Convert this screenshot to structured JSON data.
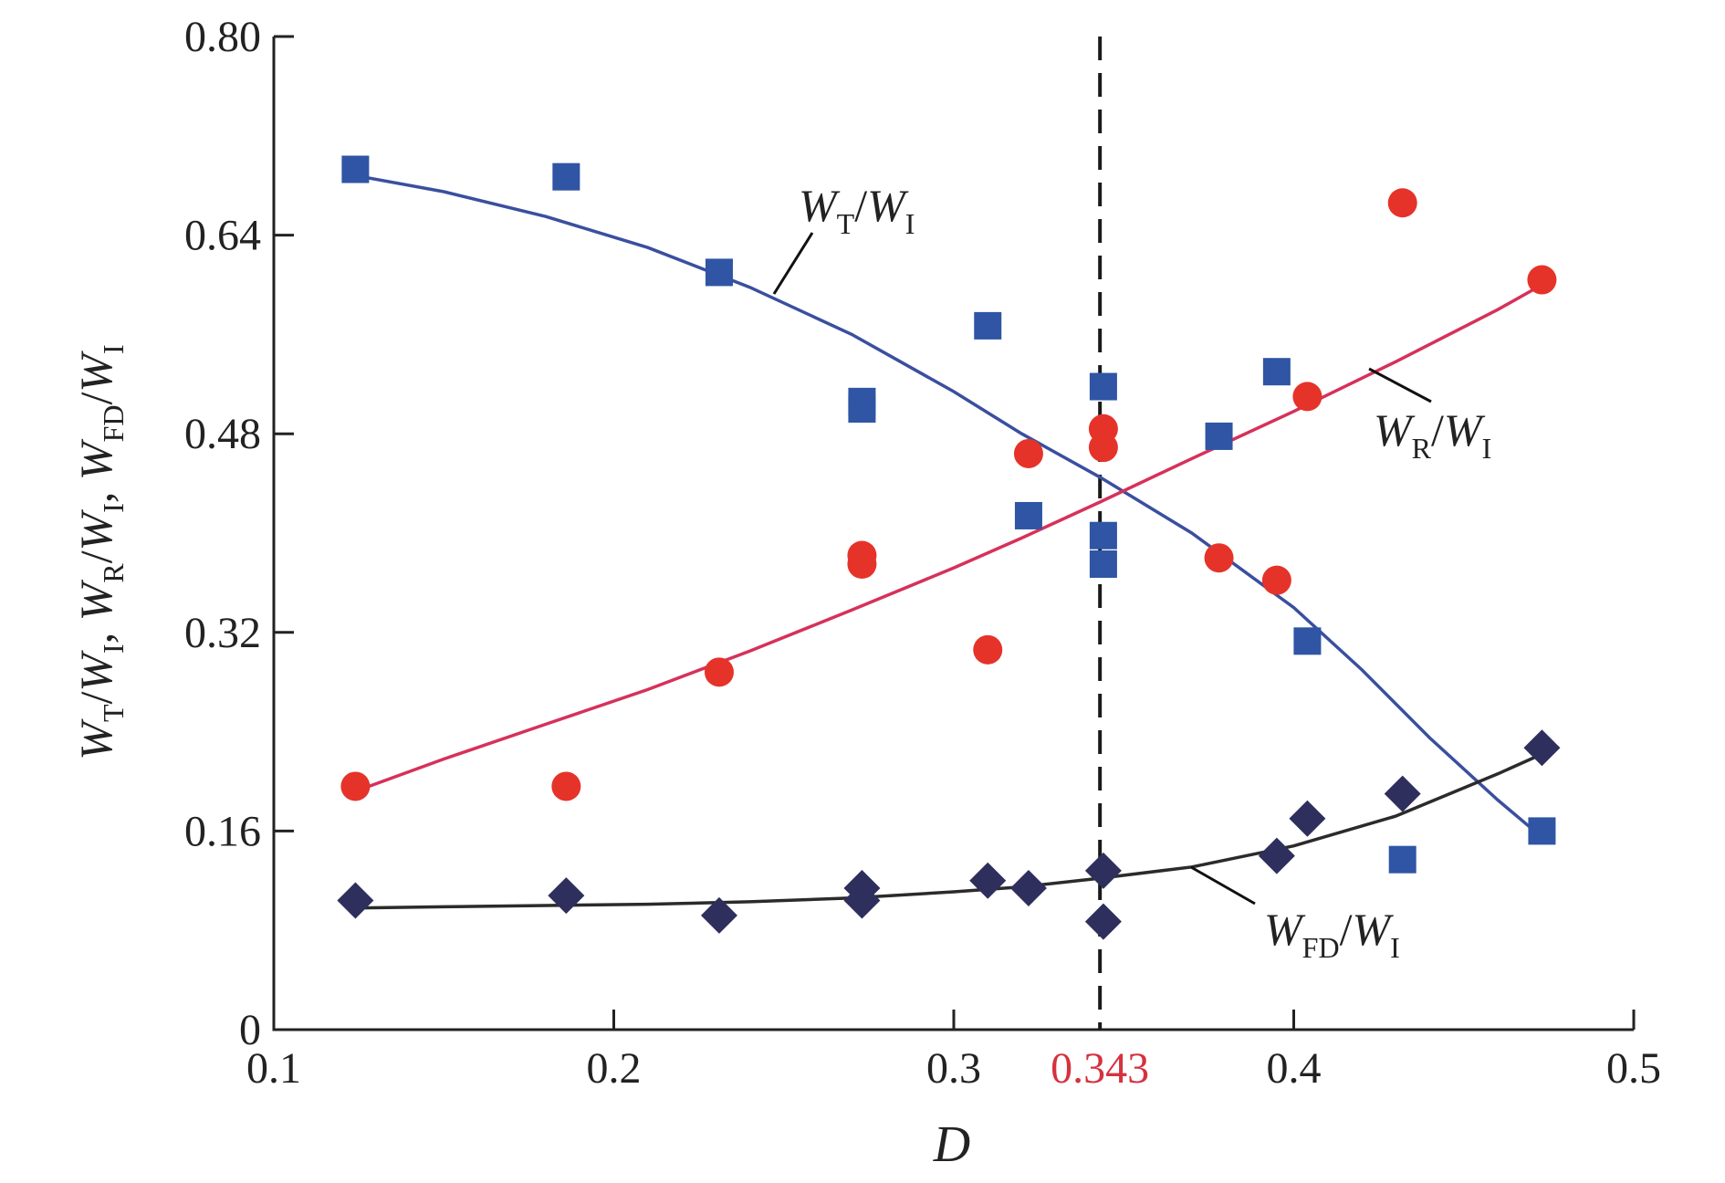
{
  "chart_data": {
    "type": "scatter",
    "title": "",
    "xlabel": "D",
    "ylabel": {
      "parts": [
        {
          "main": "W",
          "sub": "T"
        },
        {
          "sep": "/"
        },
        {
          "main": "W",
          "sub": "I"
        },
        {
          "sep": ", "
        },
        {
          "main": "W",
          "sub": "R"
        },
        {
          "sep": "/"
        },
        {
          "main": "W",
          "sub": "I"
        },
        {
          "sep": ", "
        },
        {
          "main": "W",
          "sub": "FD"
        },
        {
          "sep": "/"
        },
        {
          "main": "W",
          "sub": "I"
        }
      ]
    },
    "xlim": [
      0.1,
      0.5
    ],
    "ylim": [
      0,
      0.8
    ],
    "xticks": [
      0.1,
      0.2,
      0.3,
      0.4,
      0.5
    ],
    "xtick_labels": [
      "0.1",
      "0.2",
      "0.3",
      "0.4",
      "0.5"
    ],
    "yticks": [
      0,
      0.16,
      0.32,
      0.48,
      0.64,
      0.8
    ],
    "ytick_labels": [
      "0",
      "0.16",
      "0.32",
      "0.48",
      "0.64",
      "0.80"
    ],
    "grid": false,
    "vline": {
      "x": 0.343,
      "label": "0.343",
      "style": "dashed",
      "label_color": "#d6313f"
    },
    "series": [
      {
        "key": "transmitted",
        "marker": "square",
        "color": "#2f55a4",
        "line_color": "#3a4f9e",
        "points": [
          [
            0.124,
            0.693
          ],
          [
            0.186,
            0.687
          ],
          [
            0.231,
            0.61
          ],
          [
            0.273,
            0.5
          ],
          [
            0.273,
            0.506
          ],
          [
            0.31,
            0.567
          ],
          [
            0.322,
            0.414
          ],
          [
            0.344,
            0.518
          ],
          [
            0.344,
            0.398
          ],
          [
            0.344,
            0.375
          ],
          [
            0.378,
            0.478
          ],
          [
            0.395,
            0.53
          ],
          [
            0.404,
            0.313
          ],
          [
            0.432,
            0.137
          ],
          [
            0.473,
            0.16
          ]
        ],
        "fit": [
          [
            0.124,
            0.688
          ],
          [
            0.15,
            0.675
          ],
          [
            0.18,
            0.655
          ],
          [
            0.21,
            0.63
          ],
          [
            0.24,
            0.598
          ],
          [
            0.27,
            0.56
          ],
          [
            0.3,
            0.514
          ],
          [
            0.32,
            0.48
          ],
          [
            0.343,
            0.445
          ],
          [
            0.37,
            0.4
          ],
          [
            0.4,
            0.34
          ],
          [
            0.42,
            0.29
          ],
          [
            0.44,
            0.235
          ],
          [
            0.46,
            0.185
          ],
          [
            0.473,
            0.155
          ]
        ],
        "label": {
          "main": "W",
          "sub": "T",
          "main2": "W",
          "sub2": "I"
        }
      },
      {
        "key": "reflected",
        "marker": "circle",
        "color": "#e5332a",
        "line_color": "#d6315a",
        "points": [
          [
            0.124,
            0.196
          ],
          [
            0.186,
            0.196
          ],
          [
            0.231,
            0.288
          ],
          [
            0.273,
            0.375
          ],
          [
            0.273,
            0.382
          ],
          [
            0.31,
            0.306
          ],
          [
            0.322,
            0.464
          ],
          [
            0.344,
            0.469
          ],
          [
            0.344,
            0.484
          ],
          [
            0.378,
            0.38
          ],
          [
            0.395,
            0.362
          ],
          [
            0.404,
            0.51
          ],
          [
            0.432,
            0.666
          ],
          [
            0.473,
            0.604
          ]
        ],
        "fit": [
          [
            0.124,
            0.192
          ],
          [
            0.15,
            0.218
          ],
          [
            0.18,
            0.246
          ],
          [
            0.21,
            0.274
          ],
          [
            0.24,
            0.305
          ],
          [
            0.27,
            0.338
          ],
          [
            0.3,
            0.372
          ],
          [
            0.32,
            0.396
          ],
          [
            0.343,
            0.425
          ],
          [
            0.37,
            0.46
          ],
          [
            0.4,
            0.498
          ],
          [
            0.43,
            0.538
          ],
          [
            0.46,
            0.58
          ],
          [
            0.473,
            0.6
          ]
        ],
        "label": {
          "main": "W",
          "sub": "R",
          "main2": "W",
          "sub2": "I"
        }
      },
      {
        "key": "frictional",
        "marker": "diamond",
        "color": "#2f2f5e",
        "line_color": "#2b2b2b",
        "points": [
          [
            0.124,
            0.104
          ],
          [
            0.186,
            0.108
          ],
          [
            0.231,
            0.092
          ],
          [
            0.273,
            0.104
          ],
          [
            0.273,
            0.114
          ],
          [
            0.31,
            0.12
          ],
          [
            0.322,
            0.114
          ],
          [
            0.344,
            0.128
          ],
          [
            0.344,
            0.087
          ],
          [
            0.395,
            0.14
          ],
          [
            0.404,
            0.17
          ],
          [
            0.432,
            0.19
          ],
          [
            0.473,
            0.227
          ]
        ],
        "fit": [
          [
            0.124,
            0.098
          ],
          [
            0.15,
            0.099
          ],
          [
            0.18,
            0.1
          ],
          [
            0.21,
            0.101
          ],
          [
            0.24,
            0.103
          ],
          [
            0.27,
            0.106
          ],
          [
            0.3,
            0.111
          ],
          [
            0.32,
            0.115
          ],
          [
            0.343,
            0.122
          ],
          [
            0.37,
            0.131
          ],
          [
            0.4,
            0.148
          ],
          [
            0.43,
            0.172
          ],
          [
            0.46,
            0.206
          ],
          [
            0.473,
            0.222
          ]
        ],
        "label": {
          "main": "W",
          "sub": "FD",
          "main2": "W",
          "sub2": "I"
        }
      }
    ]
  }
}
